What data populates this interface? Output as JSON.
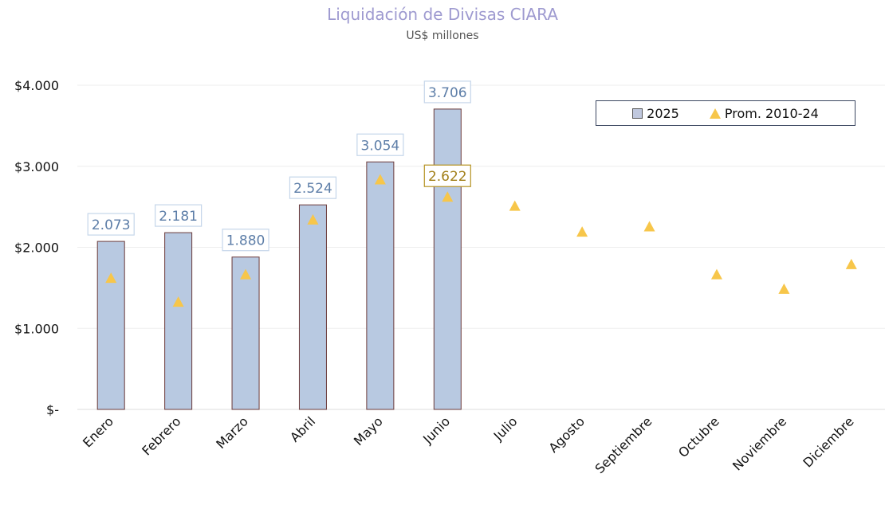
{
  "chart_data": {
    "type": "bar",
    "title": "Liquidación de Divisas CIARA",
    "subtitle": "US$ millones",
    "categories": [
      "Enero",
      "Febrero",
      "Marzo",
      "Abril",
      "Mayo",
      "Junio",
      "Julio",
      "Agosto",
      "Septiembre",
      "Octubre",
      "Noviembre",
      "Diciembre"
    ],
    "series": [
      {
        "name": "2025",
        "type": "bar",
        "color": "#b8c9e1",
        "values": [
          2073,
          2181,
          1880,
          2524,
          3054,
          3706,
          null,
          null,
          null,
          null,
          null,
          null
        ],
        "labels": [
          "2.073",
          "2.181",
          "1.880",
          "2.524",
          "3.054",
          "3.706"
        ]
      },
      {
        "name": "Prom. 2010-24",
        "type": "scatter",
        "marker": "triangle",
        "color": "#f7c64a",
        "values": [
          1620,
          1325,
          1665,
          2340,
          2835,
          2622,
          2510,
          2190,
          2255,
          1665,
          1485,
          1790
        ],
        "labels": {
          "5": "2.622"
        }
      }
    ],
    "ylim": [
      0,
      4000
    ],
    "yticks": [
      0,
      1000,
      2000,
      3000,
      4000
    ],
    "ytick_labels": [
      "$-",
      "$1.000",
      "$2.000",
      "$3.000",
      "$4.000"
    ],
    "grid": true,
    "legend": "top-right",
    "xlabel": "",
    "ylabel": ""
  }
}
